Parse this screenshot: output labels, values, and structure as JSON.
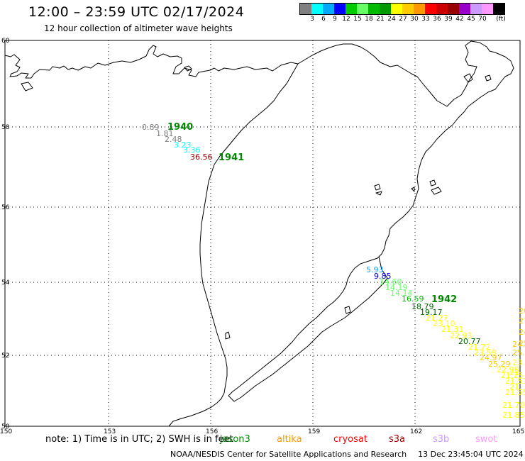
{
  "header": {
    "title": "12:00 – 23:59 UTC 02/17/2024",
    "subtitle": "12 hour collection of altimeter wave heights"
  },
  "legend": {
    "colors": [
      "#808080",
      "#00ffff",
      "#00aaff",
      "#0000ff",
      "#00cc00",
      "#66ff66",
      "#00bb00",
      "#009900",
      "#ffff00",
      "#ffcc00",
      "#ff9900",
      "#ff0000",
      "#cc0000",
      "#990000",
      "#9900cc",
      "#cc99ff",
      "#ff99ff",
      "#000000"
    ],
    "ticks": [
      "3",
      "6",
      "9",
      "12",
      "15",
      "18",
      "21",
      "24",
      "27",
      "30",
      "33",
      "36",
      "39",
      "42",
      "45",
      "70",
      "(ft)"
    ]
  },
  "axes": {
    "lat_labels": [
      "50",
      "52",
      "54",
      "56",
      "58",
      "60"
    ],
    "lon_labels": [
      "150",
      "153",
      "156",
      "159",
      "162",
      "165"
    ]
  },
  "observations": [
    {
      "text": "0.89",
      "color": "#808080"
    },
    {
      "text": "1.81",
      "color": "#808080"
    },
    {
      "text": "2.48",
      "color": "#808080"
    },
    {
      "text": "3.23",
      "color": "#00ffff"
    },
    {
      "text": "3.36",
      "color": "#00ffff"
    },
    {
      "text": "36.56",
      "color": "#990000"
    },
    {
      "text": "5.93",
      "color": "#00aaff"
    },
    {
      "text": "9.85",
      "color": "#0000cc"
    },
    {
      "text": "14.60",
      "color": "#66ff66"
    },
    {
      "text": "14.19",
      "color": "#66ff66"
    },
    {
      "text": "14.14",
      "color": "#66ff66"
    },
    {
      "text": "16.59",
      "color": "#00bb00"
    },
    {
      "text": "18.79",
      "color": "#006600"
    },
    {
      "text": "19.17",
      "color": "#006600"
    },
    {
      "text": "21.27",
      "color": "#ffff00"
    },
    {
      "text": "23.10",
      "color": "#ffff00"
    },
    {
      "text": "21.31",
      "color": "#ffff00"
    },
    {
      "text": "22.93",
      "color": "#ffff00"
    },
    {
      "text": "20.77",
      "color": "#006600"
    },
    {
      "text": "21.72",
      "color": "#ffff00"
    },
    {
      "text": "23.58",
      "color": "#ffff00"
    },
    {
      "text": "24.97",
      "color": "#ffcc00"
    },
    {
      "text": "25.29",
      "color": "#ffcc00"
    },
    {
      "text": "22.98",
      "color": "#ffff00"
    },
    {
      "text": "21.25",
      "color": "#ffff00"
    },
    {
      "text": "21.51",
      "color": "#ffff00"
    },
    {
      "text": "21.55",
      "color": "#ffff00"
    },
    {
      "text": "21.70",
      "color": "#ffff00"
    },
    {
      "text": "21.85",
      "color": "#ffff00"
    },
    {
      "text": "26",
      "color": "#ffcc00"
    },
    {
      "text": "27",
      "color": "#ffcc00"
    },
    {
      "text": "24",
      "color": "#ffcc00"
    },
    {
      "text": "25",
      "color": "#ffcc00"
    },
    {
      "text": "24.",
      "color": "#ffcc00"
    },
    {
      "text": "25.",
      "color": "#ffcc00"
    },
    {
      "text": "23.",
      "color": "#ffff00"
    },
    {
      "text": "22.",
      "color": "#ffff00"
    },
    {
      "text": "21.",
      "color": "#ffff00"
    }
  ],
  "hour_labels": [
    {
      "text": "1940",
      "color": "#008800"
    },
    {
      "text": "1941",
      "color": "#008800"
    },
    {
      "text": "1942",
      "color": "#008800"
    }
  ],
  "note": {
    "text": "note: 1) Time is in UTC; 2) SWH is in feet",
    "satellites": [
      {
        "name": "jason3",
        "color": "#008800"
      },
      {
        "name": "altika",
        "color": "#ff9900"
      },
      {
        "name": "cryosat",
        "color": "#ff0000"
      },
      {
        "name": "s3a",
        "color": "#990000"
      },
      {
        "name": "s3b",
        "color": "#cc99ff"
      },
      {
        "name": "swot",
        "color": "#ff99ff"
      }
    ]
  },
  "footer": {
    "credit": "NOAA/NESDIS Center for Satellite Applications and Research",
    "timestamp": "13 Dec 23:45:04 UTC 2024"
  }
}
